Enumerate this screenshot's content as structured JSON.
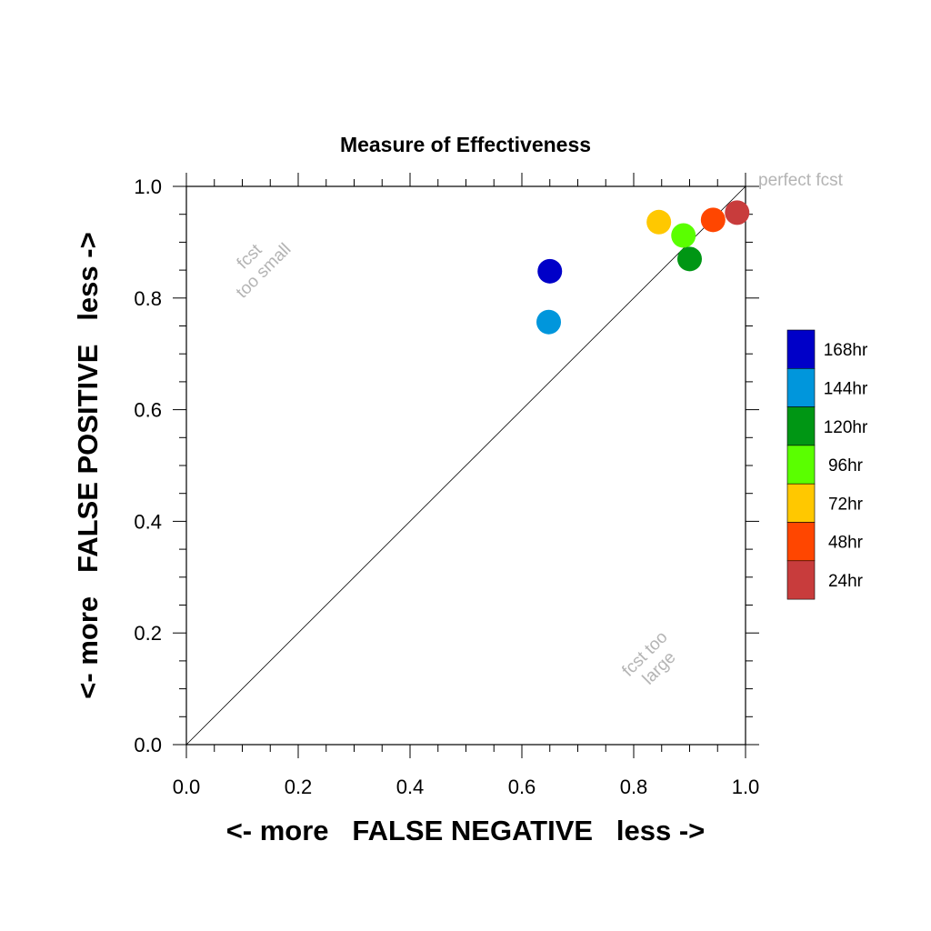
{
  "chart_data": {
    "type": "scatter",
    "title": "Measure of Effectiveness",
    "xlabel": "<- more   FALSE NEGATIVE   less ->",
    "ylabel": "<- more   FALSE POSITIVE   less ->",
    "xlim": [
      0,
      1
    ],
    "ylim": [
      0,
      1
    ],
    "x_ticks": [
      "0.0",
      "0.2",
      "0.4",
      "0.6",
      "0.8",
      "1.0"
    ],
    "y_ticks": [
      "0.0",
      "0.2",
      "0.4",
      "0.6",
      "0.8",
      "1.0"
    ],
    "grid": false,
    "diagonal_reference_line": true,
    "annotations": {
      "perfect": "perfect fcst",
      "small_line1": "fcst",
      "small_line2": "too small",
      "large_line1": "fcst too",
      "large_line2": "large"
    },
    "legend_position": "right",
    "series": [
      {
        "name": "168hr",
        "color": "#0000c8",
        "x": 0.65,
        "y": 0.848
      },
      {
        "name": "144hr",
        "color": "#0096dc",
        "x": 0.648,
        "y": 0.757
      },
      {
        "name": "120hr",
        "color": "#009614",
        "x": 0.9,
        "y": 0.87
      },
      {
        "name": "96hr",
        "color": "#5aff00",
        "x": 0.889,
        "y": 0.912
      },
      {
        "name": "72hr",
        "color": "#ffc800",
        "x": 0.845,
        "y": 0.936
      },
      {
        "name": "48hr",
        "color": "#ff4600",
        "x": 0.942,
        "y": 0.94
      },
      {
        "name": "24hr",
        "color": "#c83c3c",
        "x": 0.985,
        "y": 0.953
      }
    ]
  }
}
